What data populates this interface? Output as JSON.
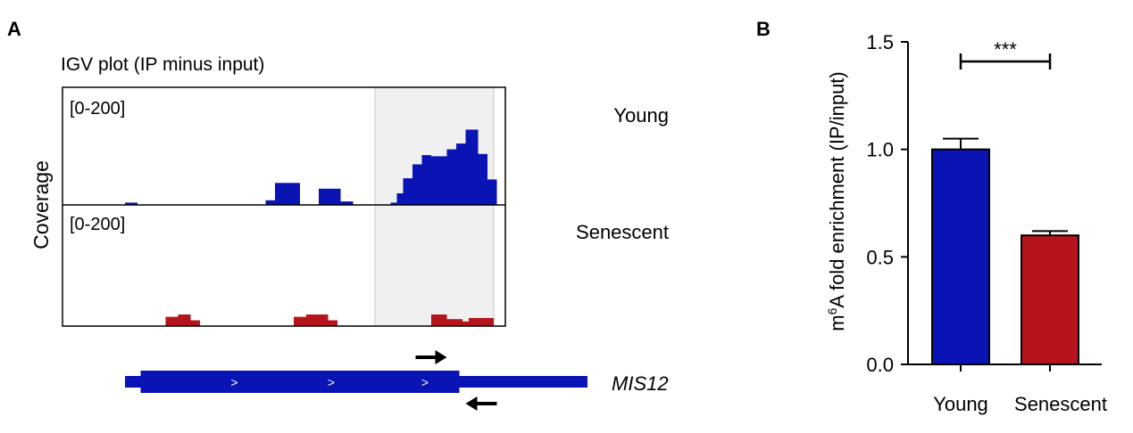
{
  "panel_a": {
    "label": "A",
    "title": "IGV plot (IP minus input)",
    "y_label": "Coverage",
    "tracks": [
      {
        "name": "Young",
        "range": "[0-200]",
        "color": "#0a13b3",
        "bins": [
          {
            "x0": 2.0,
            "x1": 2.4,
            "y": 2
          },
          {
            "x0": 6.5,
            "x1": 6.8,
            "y": 4
          },
          {
            "x0": 6.8,
            "x1": 7.6,
            "y": 19
          },
          {
            "x0": 8.2,
            "x1": 8.9,
            "y": 14
          },
          {
            "x0": 8.9,
            "x1": 9.3,
            "y": 3
          },
          {
            "x0": 10.5,
            "x1": 10.7,
            "y": 2
          },
          {
            "x0": 10.7,
            "x1": 10.9,
            "y": 10
          },
          {
            "x0": 10.9,
            "x1": 11.2,
            "y": 23
          },
          {
            "x0": 11.2,
            "x1": 11.5,
            "y": 35
          },
          {
            "x0": 11.5,
            "x1": 11.8,
            "y": 43
          },
          {
            "x0": 11.8,
            "x1": 12.3,
            "y": 42
          },
          {
            "x0": 12.3,
            "x1": 12.6,
            "y": 48
          },
          {
            "x0": 12.6,
            "x1": 12.9,
            "y": 53
          },
          {
            "x0": 12.9,
            "x1": 13.3,
            "y": 65
          },
          {
            "x0": 13.3,
            "x1": 13.6,
            "y": 44
          },
          {
            "x0": 13.6,
            "x1": 13.9,
            "y": 22
          }
        ]
      },
      {
        "name": "Senescent",
        "range": "[0-200]",
        "color": "#b5141c",
        "bins": [
          {
            "x0": 3.3,
            "x1": 3.7,
            "y": 8
          },
          {
            "x0": 3.7,
            "x1": 4.1,
            "y": 10
          },
          {
            "x0": 4.1,
            "x1": 4.4,
            "y": 5
          },
          {
            "x0": 7.4,
            "x1": 7.8,
            "y": 8
          },
          {
            "x0": 7.8,
            "x1": 8.5,
            "y": 10
          },
          {
            "x0": 8.5,
            "x1": 8.8,
            "y": 5
          },
          {
            "x0": 11.8,
            "x1": 12.3,
            "y": 10
          },
          {
            "x0": 12.3,
            "x1": 12.8,
            "y": 6
          },
          {
            "x0": 12.8,
            "x1": 13.0,
            "y": 4
          },
          {
            "x0": 13.0,
            "x1": 13.8,
            "y": 7
          }
        ]
      }
    ],
    "highlight": {
      "x0": 10.0,
      "x1": 13.8,
      "color": "#f0f0f0"
    },
    "gene": {
      "name": "MIS12",
      "color": "#0a13b3",
      "thin_start": 2.0,
      "thin_end": 16.8,
      "thick_start": 2.5,
      "thick_end": 12.7,
      "strand_marks": [
        {
          "x": 5.5,
          "symbol": ">"
        },
        {
          "x": 8.6,
          "symbol": ">"
        },
        {
          "x": 11.6,
          "symbol": ">"
        }
      ]
    },
    "primers": [
      {
        "direction": "forward",
        "x0": 11.3,
        "x1": 12.3
      },
      {
        "direction": "reverse",
        "x0": 12.9,
        "x1": 13.9
      }
    ]
  },
  "chart_data": {
    "type": "bar",
    "label": "B",
    "categories": [
      "Young",
      "Senescent"
    ],
    "values": [
      1.0,
      0.6
    ],
    "errors": [
      0.05,
      0.02
    ],
    "colors": [
      "#0a13b3",
      "#b5141c"
    ],
    "ylabel_prefix": "m",
    "ylabel_sup": "6",
    "ylabel_rest": "A fold enrichment (IP/input)",
    "ylim": [
      0,
      1.5
    ],
    "yticks": [
      "0.0",
      "0.5",
      "1.0",
      "1.5"
    ],
    "significance": "***"
  }
}
